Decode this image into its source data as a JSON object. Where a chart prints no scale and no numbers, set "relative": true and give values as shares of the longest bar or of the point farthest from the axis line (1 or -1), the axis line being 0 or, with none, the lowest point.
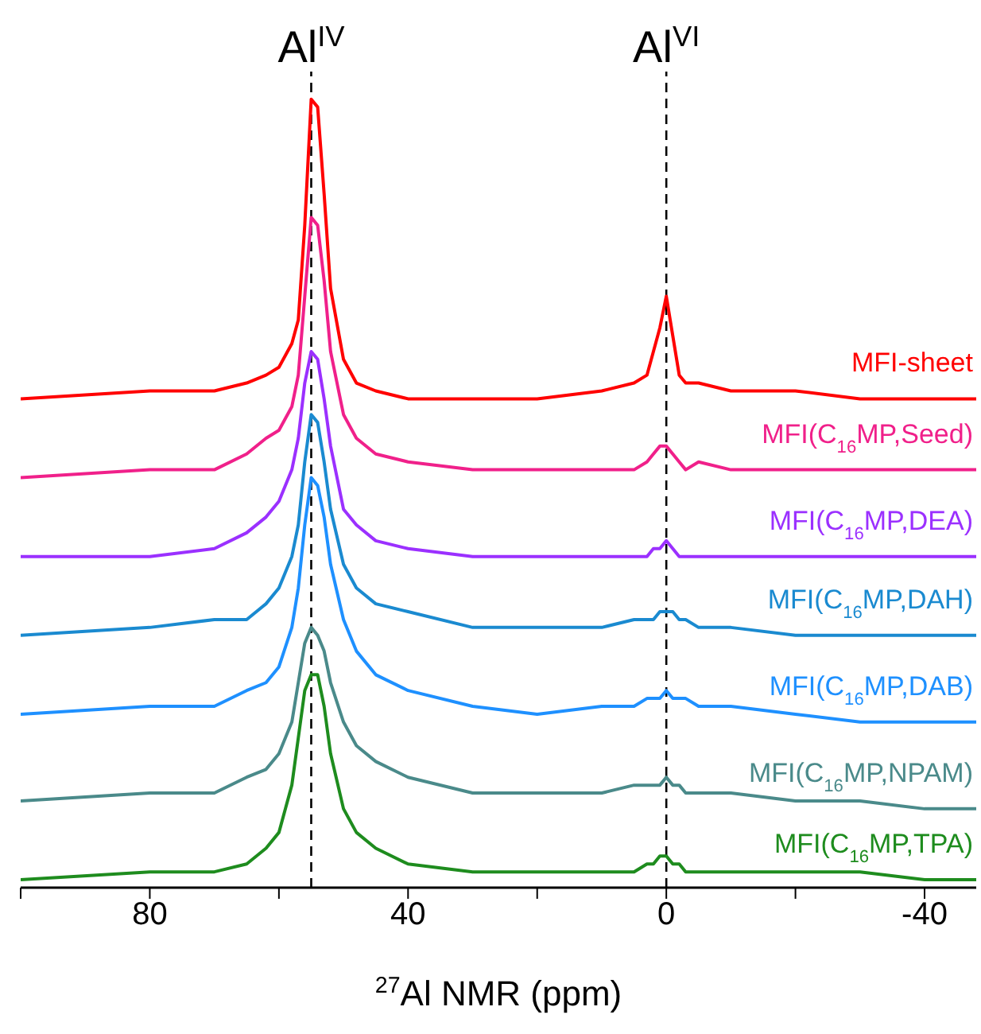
{
  "chart_data": {
    "type": "line",
    "relative": true,
    "xlabel": "$^{27}$Al NMR (ppm)",
    "xlim": [
      100,
      -48
    ],
    "xticks": [
      {
        "value": 100,
        "label": null
      },
      80,
      {
        "value": 60,
        "label": null
      },
      40,
      {
        "value": 20,
        "label": null
      },
      0,
      {
        "value": -20,
        "label": null
      },
      -40
    ],
    "x": [
      100,
      80,
      70,
      65,
      62,
      60,
      58,
      57,
      56,
      55,
      54,
      53,
      52,
      50,
      48,
      45,
      40,
      30,
      20,
      10,
      5,
      3,
      2,
      1,
      0,
      -1,
      -2,
      -3,
      -5,
      -10,
      -20,
      -30,
      -40,
      -48
    ],
    "series": [
      {
        "name": "MFI-sheet",
        "color": "#ff0000",
        "values": [
          0.62,
          0.63,
          0.63,
          0.64,
          0.65,
          0.66,
          0.69,
          0.72,
          0.84,
          1.0,
          0.99,
          0.88,
          0.76,
          0.67,
          0.64,
          0.63,
          0.62,
          0.62,
          0.62,
          0.63,
          0.64,
          0.65,
          0.68,
          0.71,
          0.75,
          0.7,
          0.65,
          0.64,
          0.64,
          0.63,
          0.63,
          0.62,
          0.62,
          0.62
        ]
      },
      {
        "name": "MFI(C$_{16}$MP,Seed)",
        "color": "#f0208a",
        "values": [
          0.52,
          0.53,
          0.53,
          0.55,
          0.57,
          0.58,
          0.61,
          0.65,
          0.75,
          0.85,
          0.84,
          0.77,
          0.68,
          0.6,
          0.57,
          0.55,
          0.54,
          0.53,
          0.53,
          0.53,
          0.53,
          0.54,
          0.55,
          0.56,
          0.56,
          0.55,
          0.54,
          0.53,
          0.54,
          0.53,
          0.53,
          0.53,
          0.53,
          0.53
        ]
      },
      {
        "name": "MFI(C$_{16}$MP,DEA)",
        "color": "#9b30ff",
        "values": [
          0.42,
          0.42,
          0.43,
          0.45,
          0.47,
          0.49,
          0.53,
          0.57,
          0.64,
          0.68,
          0.67,
          0.62,
          0.56,
          0.48,
          0.46,
          0.44,
          0.43,
          0.42,
          0.42,
          0.42,
          0.42,
          0.42,
          0.43,
          0.43,
          0.44,
          0.43,
          0.42,
          0.42,
          0.42,
          0.42,
          0.42,
          0.42,
          0.42,
          0.42
        ]
      },
      {
        "name": "MFI(C$_{16}$MP,DAH)",
        "color": "#1a8ad0",
        "values": [
          0.32,
          0.33,
          0.34,
          0.34,
          0.36,
          0.38,
          0.42,
          0.46,
          0.54,
          0.6,
          0.59,
          0.54,
          0.48,
          0.41,
          0.38,
          0.36,
          0.35,
          0.33,
          0.33,
          0.33,
          0.34,
          0.34,
          0.34,
          0.35,
          0.35,
          0.35,
          0.34,
          0.34,
          0.33,
          0.33,
          0.32,
          0.32,
          0.32,
          0.32
        ]
      },
      {
        "name": "MFI(C$_{16}$MP,DAB)",
        "color": "#1e90ff",
        "values": [
          0.22,
          0.23,
          0.23,
          0.25,
          0.26,
          0.28,
          0.33,
          0.38,
          0.46,
          0.52,
          0.51,
          0.47,
          0.41,
          0.34,
          0.3,
          0.27,
          0.25,
          0.23,
          0.22,
          0.23,
          0.23,
          0.24,
          0.24,
          0.24,
          0.25,
          0.24,
          0.24,
          0.24,
          0.23,
          0.23,
          0.22,
          0.21,
          0.21,
          0.21
        ]
      },
      {
        "name": "MFI(C$_{16}$MP,NPAM)",
        "color": "#4a8a8a",
        "values": [
          0.11,
          0.12,
          0.12,
          0.14,
          0.15,
          0.17,
          0.21,
          0.26,
          0.31,
          0.33,
          0.32,
          0.3,
          0.26,
          0.21,
          0.18,
          0.16,
          0.14,
          0.12,
          0.12,
          0.12,
          0.13,
          0.13,
          0.13,
          0.13,
          0.14,
          0.13,
          0.13,
          0.12,
          0.12,
          0.12,
          0.11,
          0.11,
          0.1,
          0.1
        ]
      },
      {
        "name": "MFI(C$_{16}$MP,TPA)",
        "color": "#1e8c1e",
        "values": [
          0.01,
          0.02,
          0.02,
          0.03,
          0.05,
          0.07,
          0.13,
          0.19,
          0.25,
          0.27,
          0.27,
          0.23,
          0.17,
          0.1,
          0.07,
          0.05,
          0.03,
          0.02,
          0.02,
          0.02,
          0.02,
          0.03,
          0.03,
          0.04,
          0.04,
          0.03,
          0.03,
          0.02,
          0.02,
          0.02,
          0.02,
          0.02,
          0.01,
          0.01
        ]
      }
    ],
    "ref_lines": [
      {
        "axis": "x",
        "value": 55,
        "label": "Al$^{IV}$",
        "color": "#000000",
        "line_style": "dashed"
      },
      {
        "axis": "x",
        "value": 0,
        "label": "Al$^{VI}$",
        "color": "#000000",
        "line_style": "dashed"
      }
    ],
    "legend": false,
    "grid": false,
    "marker": "none",
    "line_style": "solid"
  }
}
